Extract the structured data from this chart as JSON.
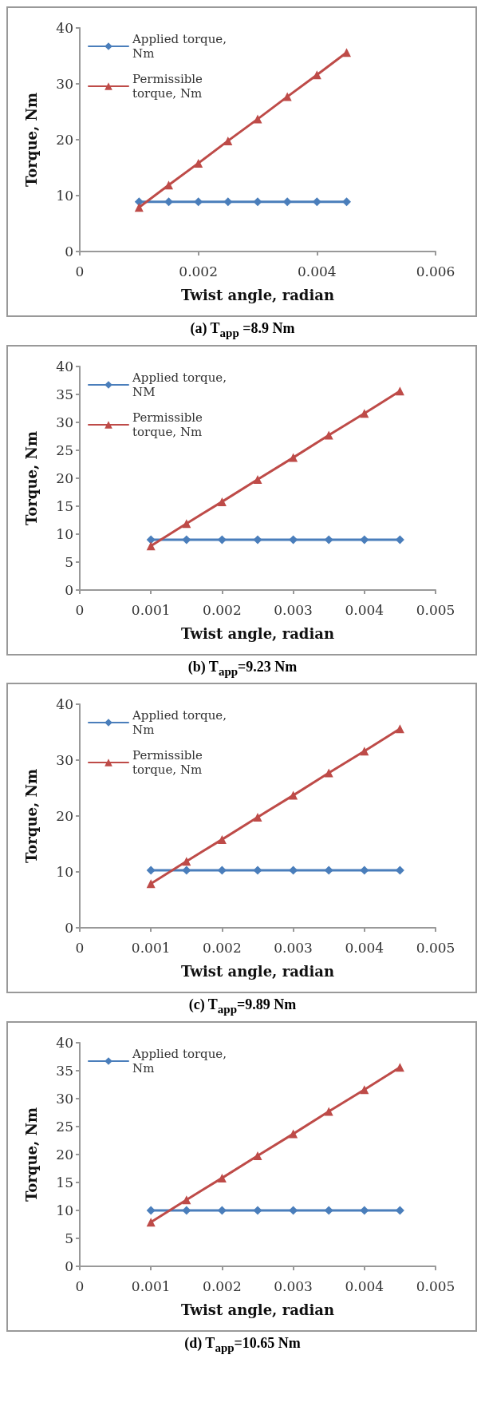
{
  "chart_data": [
    {
      "type": "line",
      "xlabel": "Twist angle, radian",
      "ylabel": "Torque, Nm",
      "annotations": [
        "(a) T$_{app}$ =8.9 Nm"
      ],
      "x": [
        0.001,
        0.0015,
        0.002,
        0.0025,
        0.003,
        0.0035,
        0.004,
        0.0045
      ],
      "xlim": [
        0,
        0.006
      ],
      "xticks": [
        0,
        0.002,
        0.004,
        0.006
      ],
      "ylim": [
        0,
        40
      ],
      "yticks": [
        0,
        10,
        20,
        30,
        40
      ],
      "grid": false,
      "legend": "top left",
      "series": [
        {
          "name": "Applied torque, Nm",
          "color": "#4a7ebb",
          "marker": "diamond",
          "values": [
            8.9,
            8.9,
            8.9,
            8.9,
            8.9,
            8.9,
            8.9,
            8.9
          ]
        },
        {
          "name": "Permissible torque, Nm",
          "color": "#be4b48",
          "marker": "triangle",
          "values": [
            7.9,
            11.9,
            15.8,
            19.8,
            23.7,
            27.7,
            31.6,
            35.6
          ]
        }
      ]
    },
    {
      "type": "line",
      "xlabel": "Twist angle, radian",
      "ylabel": "Torque, Nm",
      "annotations": [
        "(b) T$_{app}$=9.23 Nm"
      ],
      "x": [
        0.001,
        0.0015,
        0.002,
        0.0025,
        0.003,
        0.0035,
        0.004,
        0.0045
      ],
      "xlim": [
        0,
        0.005
      ],
      "xticks": [
        0,
        0.001,
        0.002,
        0.003,
        0.004,
        0.005
      ],
      "ylim": [
        0,
        40
      ],
      "yticks": [
        0,
        5,
        10,
        15,
        20,
        25,
        30,
        35,
        40
      ],
      "grid": false,
      "legend": "top left",
      "series": [
        {
          "name": "Applied torque, NM",
          "color": "#4a7ebb",
          "marker": "diamond",
          "values": [
            9.0,
            9.0,
            9.0,
            9.0,
            9.0,
            9.0,
            9.0,
            9.0
          ]
        },
        {
          "name": "Permissible torque, Nm",
          "color": "#be4b48",
          "marker": "triangle",
          "values": [
            7.9,
            11.9,
            15.8,
            19.8,
            23.7,
            27.7,
            31.6,
            35.6
          ]
        }
      ]
    },
    {
      "type": "line",
      "xlabel": "Twist angle, radian",
      "ylabel": "Torque, Nm",
      "annotations": [
        "(c) T$_{app}$=9.89 Nm"
      ],
      "x": [
        0.001,
        0.0015,
        0.002,
        0.0025,
        0.003,
        0.0035,
        0.004,
        0.0045
      ],
      "xlim": [
        0,
        0.005
      ],
      "xticks": [
        0,
        0.001,
        0.002,
        0.003,
        0.004,
        0.005
      ],
      "ylim": [
        0,
        40
      ],
      "yticks": [
        0,
        10,
        20,
        30,
        40
      ],
      "grid": false,
      "legend": "top left",
      "series": [
        {
          "name": "Applied torque, Nm",
          "color": "#4a7ebb",
          "marker": "diamond",
          "values": [
            10.3,
            10.3,
            10.3,
            10.3,
            10.3,
            10.3,
            10.3,
            10.3
          ]
        },
        {
          "name": "Permissible torque, Nm",
          "color": "#be4b48",
          "marker": "triangle",
          "values": [
            7.9,
            11.9,
            15.8,
            19.8,
            23.7,
            27.7,
            31.6,
            35.6
          ]
        }
      ]
    },
    {
      "type": "line",
      "xlabel": "Twist angle, radian",
      "ylabel": "Torque, Nm",
      "annotations": [
        "(d) T$_{app}$=10.65 Nm"
      ],
      "x": [
        0.001,
        0.0015,
        0.002,
        0.0025,
        0.003,
        0.0035,
        0.004,
        0.0045
      ],
      "xlim": [
        0,
        0.005
      ],
      "xticks": [
        0,
        0.001,
        0.002,
        0.003,
        0.004,
        0.005
      ],
      "ylim": [
        0,
        40
      ],
      "yticks": [
        0,
        5,
        10,
        15,
        20,
        25,
        30,
        35,
        40
      ],
      "grid": false,
      "legend": "top left",
      "series": [
        {
          "name": "Applied torque, Nm",
          "color": "#4a7ebb",
          "marker": "diamond",
          "values": [
            10,
            10,
            10,
            10,
            10,
            10,
            10,
            10
          ]
        },
        {
          "color": "#be4b48",
          "marker": "triangle",
          "values": [
            7.9,
            11.9,
            15.8,
            19.8,
            23.7,
            27.7,
            31.6,
            35.6
          ]
        }
      ]
    }
  ]
}
